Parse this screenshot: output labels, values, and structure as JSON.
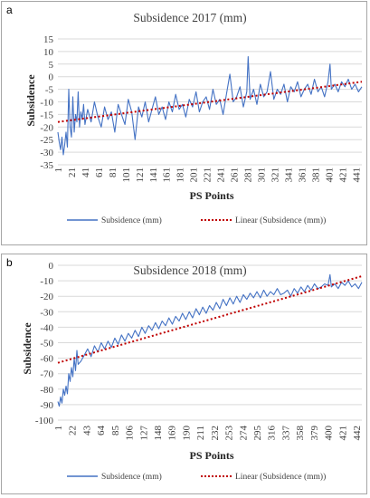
{
  "chart_data": [
    {
      "panel_label": "a",
      "type": "line",
      "title": "Subsidence 2017 (mm)",
      "xlabel": "PS Points",
      "ylabel": "Subsidence",
      "xlim": [
        1,
        450
      ],
      "ylim": [
        -35,
        15
      ],
      "yticks": [
        15,
        10,
        5,
        0,
        -5,
        -10,
        -15,
        -20,
        -25,
        -30,
        -35
      ],
      "xticks": [
        1,
        21,
        41,
        61,
        81,
        101,
        121,
        141,
        161,
        181,
        201,
        221,
        241,
        261,
        281,
        301,
        321,
        341,
        361,
        381,
        401,
        421,
        441
      ],
      "grid": "horizontal",
      "legend_position": "bottom",
      "series": [
        {
          "name": "Subsidence (mm)",
          "color": "#4472c4",
          "style": "solid",
          "x": [
            1,
            3,
            5,
            7,
            9,
            11,
            13,
            15,
            17,
            19,
            21,
            23,
            25,
            27,
            29,
            31,
            33,
            35,
            37,
            39,
            41,
            45,
            50,
            55,
            60,
            65,
            70,
            75,
            80,
            85,
            90,
            95,
            100,
            105,
            110,
            115,
            120,
            125,
            130,
            135,
            140,
            145,
            150,
            155,
            160,
            165,
            170,
            175,
            180,
            185,
            190,
            195,
            200,
            205,
            210,
            215,
            220,
            225,
            230,
            235,
            240,
            245,
            250,
            255,
            260,
            265,
            270,
            275,
            280,
            282,
            285,
            290,
            295,
            300,
            305,
            310,
            315,
            320,
            325,
            330,
            335,
            340,
            345,
            350,
            355,
            360,
            365,
            370,
            375,
            380,
            385,
            390,
            395,
            400,
            403,
            405,
            410,
            415,
            420,
            425,
            430,
            435,
            440,
            445,
            450
          ],
          "values": [
            -22,
            -26,
            -29,
            -24,
            -31,
            -27,
            -22,
            -28,
            -5,
            -20,
            -24,
            -8,
            -22,
            -15,
            -18,
            -6,
            -20,
            -14,
            -17,
            -11,
            -19,
            -13,
            -18,
            -10,
            -16,
            -20,
            -12,
            -17,
            -14,
            -22,
            -11,
            -15,
            -19,
            -9,
            -14,
            -25,
            -12,
            -16,
            -10,
            -18,
            -13,
            -8,
            -15,
            -12,
            -17,
            -10,
            -14,
            -7,
            -13,
            -11,
            -16,
            -9,
            -12,
            -6,
            -14,
            -10,
            -8,
            -13,
            -5,
            -11,
            -9,
            -15,
            -7,
            1,
            -10,
            -8,
            -4,
            -12,
            -6,
            8,
            -9,
            -5,
            -11,
            -3,
            -8,
            -6,
            2,
            -9,
            -5,
            -7,
            -3,
            -10,
            -4,
            -6,
            -2,
            -8,
            -5,
            -3,
            -7,
            -1,
            -6,
            -4,
            -8,
            -2,
            5,
            -5,
            -3,
            -6,
            -2,
            -4,
            -1,
            -5,
            -3,
            -6,
            -4
          ]
        },
        {
          "name": "Linear (Subsidence (mm))",
          "color": "#c00000",
          "style": "dotted",
          "x": [
            1,
            450
          ],
          "values": [
            -18,
            -2
          ]
        }
      ]
    },
    {
      "panel_label": "b",
      "type": "line",
      "title": "Subsidence 2018 (mm)",
      "xlabel": "PS Points",
      "ylabel": "Subsidence",
      "xlim": [
        1,
        450
      ],
      "ylim": [
        -100,
        0
      ],
      "yticks": [
        0,
        -10,
        -20,
        -30,
        -40,
        -50,
        -60,
        -70,
        -80,
        -90,
        -100
      ],
      "xticks": [
        1,
        22,
        43,
        64,
        85,
        106,
        127,
        148,
        169,
        190,
        211,
        232,
        253,
        274,
        295,
        316,
        337,
        358,
        379,
        400,
        421,
        442
      ],
      "grid": "horizontal",
      "legend_position": "bottom",
      "series": [
        {
          "name": "Subsidence (mm)",
          "color": "#4472c4",
          "style": "solid",
          "x": [
            1,
            3,
            5,
            7,
            9,
            11,
            13,
            15,
            17,
            19,
            21,
            23,
            25,
            27,
            29,
            31,
            35,
            40,
            45,
            50,
            55,
            60,
            65,
            70,
            75,
            80,
            85,
            90,
            95,
            100,
            105,
            110,
            115,
            120,
            125,
            130,
            135,
            140,
            145,
            150,
            155,
            160,
            165,
            170,
            175,
            180,
            185,
            190,
            195,
            200,
            205,
            210,
            215,
            220,
            225,
            230,
            235,
            240,
            245,
            250,
            255,
            260,
            265,
            270,
            275,
            280,
            285,
            290,
            295,
            300,
            305,
            310,
            315,
            320,
            325,
            330,
            335,
            340,
            345,
            350,
            355,
            360,
            365,
            370,
            375,
            380,
            385,
            390,
            395,
            400,
            403,
            405,
            410,
            415,
            420,
            425,
            430,
            435,
            440,
            445,
            450
          ],
          "values": [
            -88,
            -91,
            -85,
            -89,
            -80,
            -84,
            -78,
            -83,
            -70,
            -75,
            -66,
            -72,
            -60,
            -68,
            -55,
            -64,
            -62,
            -58,
            -54,
            -59,
            -52,
            -56,
            -50,
            -54,
            -49,
            -53,
            -47,
            -51,
            -45,
            -49,
            -44,
            -47,
            -42,
            -46,
            -40,
            -44,
            -39,
            -42,
            -37,
            -41,
            -36,
            -39,
            -34,
            -38,
            -33,
            -36,
            -31,
            -35,
            -30,
            -34,
            -28,
            -32,
            -27,
            -31,
            -26,
            -29,
            -24,
            -28,
            -22,
            -26,
            -21,
            -25,
            -20,
            -24,
            -19,
            -22,
            -18,
            -21,
            -17,
            -21,
            -16,
            -20,
            -17,
            -19,
            -15,
            -19,
            -18,
            -16,
            -20,
            -15,
            -18,
            -14,
            -17,
            -13,
            -16,
            -12,
            -15,
            -14,
            -12,
            -13,
            -6,
            -14,
            -12,
            -15,
            -11,
            -13,
            -10,
            -14,
            -12,
            -15,
            -11
          ]
        },
        {
          "name": "Linear (Subsidence (mm))",
          "color": "#c00000",
          "style": "dotted",
          "x": [
            1,
            450
          ],
          "values": [
            -63,
            -7
          ]
        }
      ]
    }
  ]
}
